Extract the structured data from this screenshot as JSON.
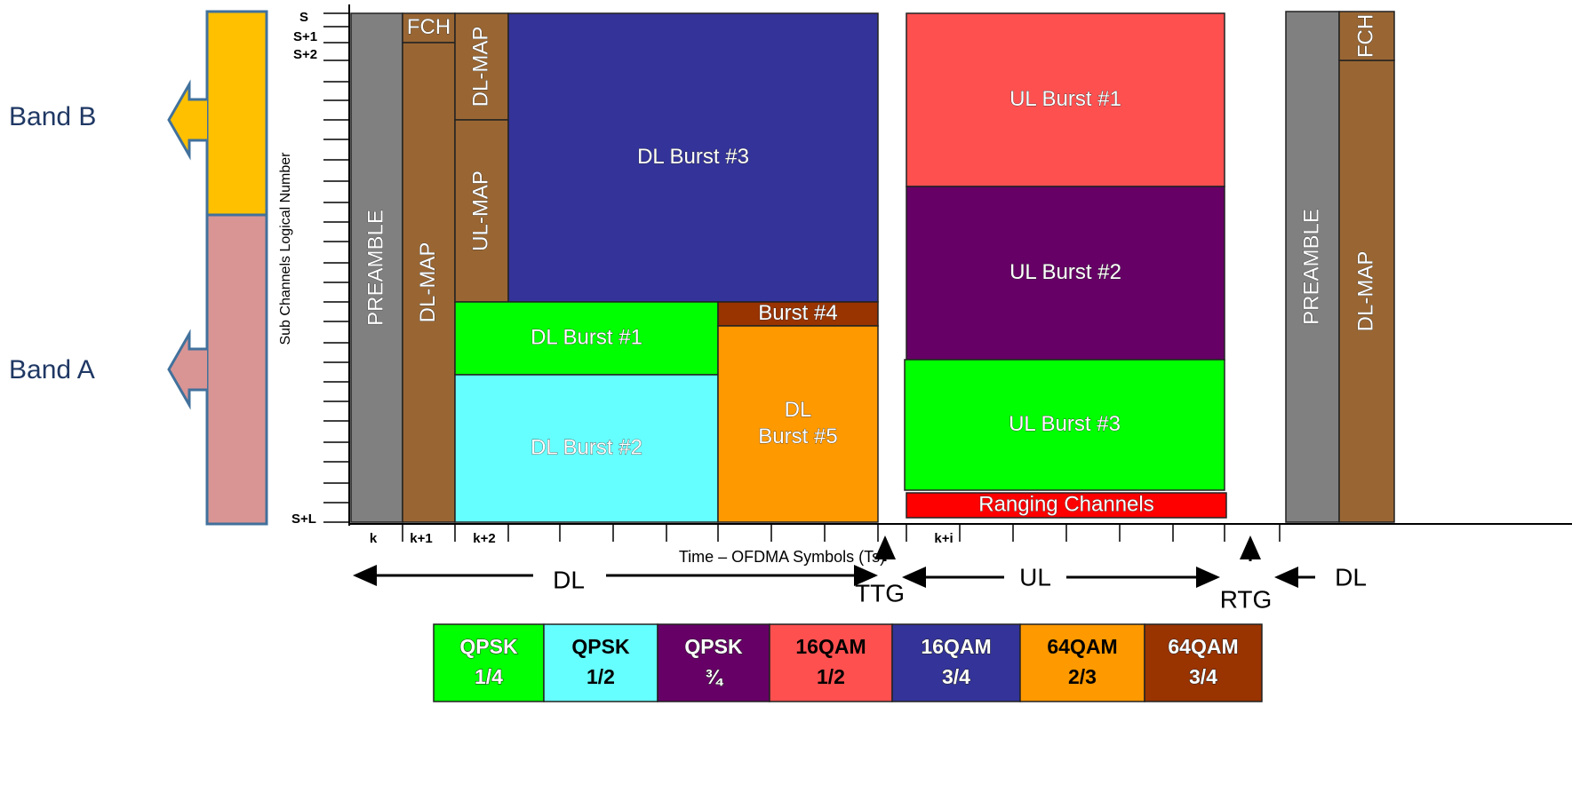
{
  "bands": [
    "Band B",
    "Band A"
  ],
  "y_axis": {
    "label": "Sub Channels Logical Number",
    "ticks": [
      "S",
      "S+1",
      "S+2",
      "S+L"
    ]
  },
  "x_axis": {
    "label": "Time – OFDMA Symbols (Ts)",
    "ticks": [
      "k",
      "k+1",
      "k+2",
      "k+i"
    ]
  },
  "blocks": [
    "PREAMBLE",
    "FCH",
    "DL-MAP",
    "DL-MAP",
    "UL-MAP",
    "DL Burst #3",
    "DL Burst #1",
    "DL Burst #2",
    "Burst #4",
    [
      "DL",
      "Burst #5"
    ],
    "UL Burst #1",
    "UL Burst #2",
    "UL Burst #3",
    "Ranging Channels",
    "PREAMBLE",
    "DL-MAP",
    "FCH"
  ],
  "phases": {
    "dl": "DL",
    "ttg": "TTG",
    "ul": "UL",
    "rtg": "RTG",
    "dl_next": "DL"
  },
  "legend": [
    [
      "QPSK",
      "1/4"
    ],
    [
      "QPSK",
      "1/2"
    ],
    [
      "QPSK",
      "¾"
    ],
    [
      "16QAM",
      "1/2"
    ],
    [
      "16QAM",
      "3/4"
    ],
    [
      "64QAM",
      "2/3"
    ],
    [
      "64QAM",
      "3/4"
    ]
  ]
}
